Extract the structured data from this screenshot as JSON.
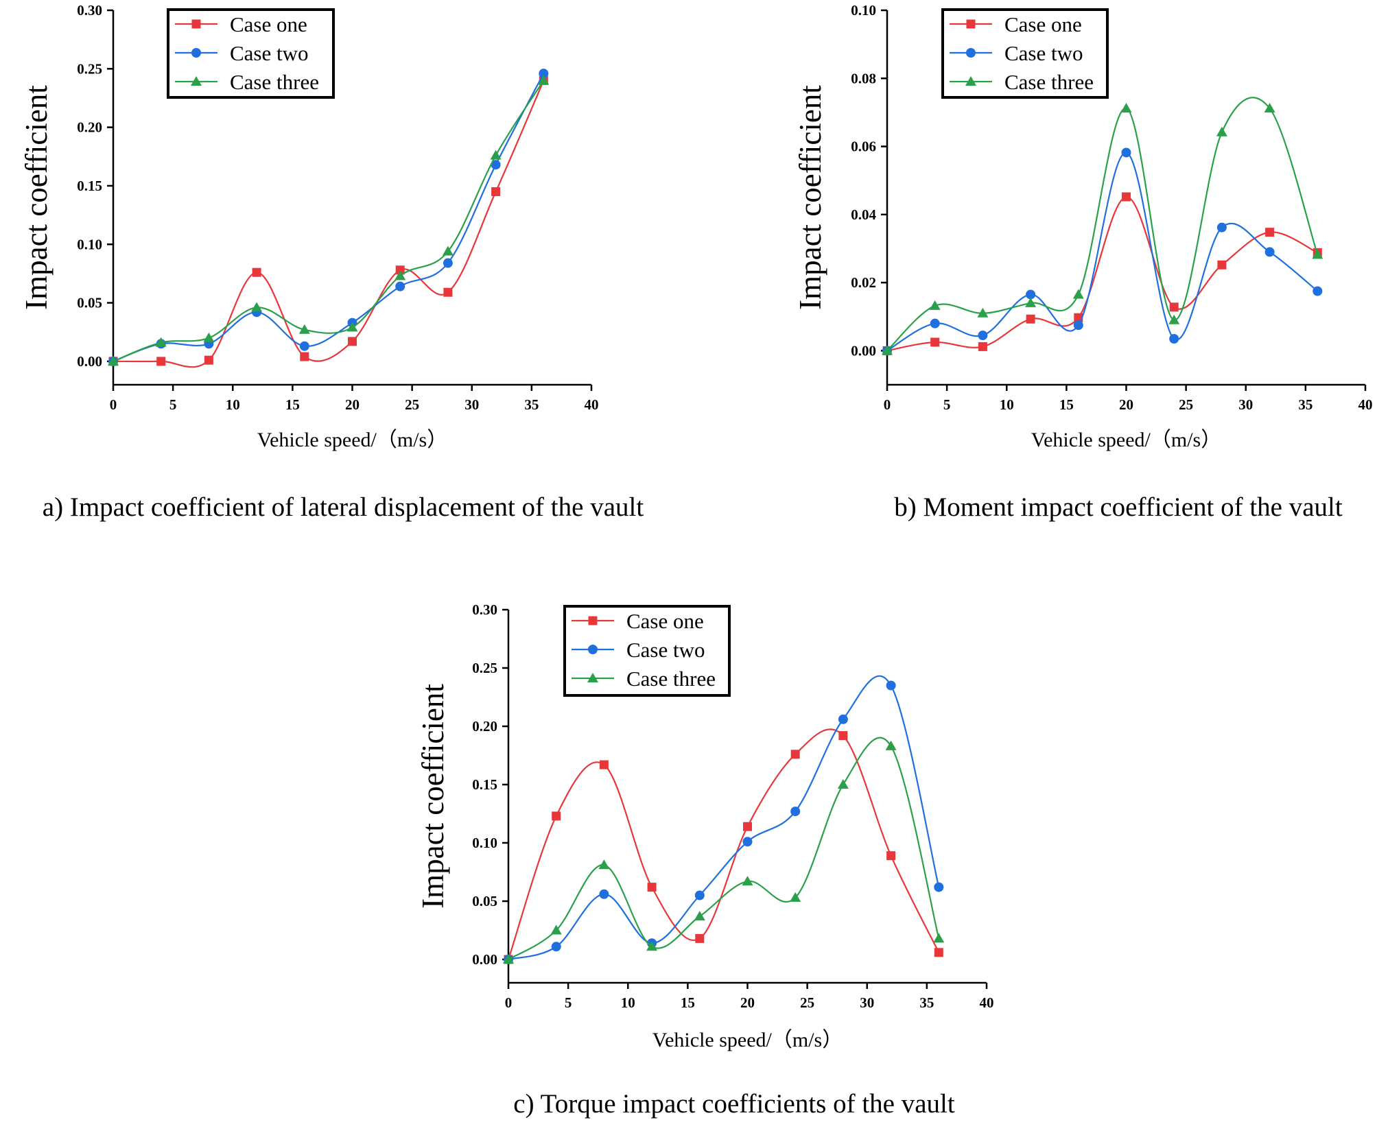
{
  "series_colors": [
    "#e8373b",
    "#1f6fdf",
    "#2aa04a"
  ],
  "chart_data": [
    {
      "type": "line",
      "caption": "a) Impact coefficient of lateral displacement of the vault",
      "xlabel": "Vehicle speed/（m/s）",
      "ylabel": "Impact coefficient",
      "xlim": [
        0,
        40
      ],
      "ylim": [
        -0.02,
        0.3
      ],
      "xticks": [
        "0",
        "5",
        "10",
        "15",
        "20",
        "25",
        "30",
        "35",
        "40"
      ],
      "yticks": [
        "0.00",
        "0.05",
        "0.10",
        "0.15",
        "0.20",
        "0.25",
        "0.30"
      ],
      "x": [
        0,
        4,
        8,
        12,
        16,
        20,
        24,
        28,
        32,
        36
      ],
      "series": [
        {
          "name": "Case one",
          "marker": "square",
          "values": [
            0.0,
            0.0,
            0.001,
            0.076,
            0.004,
            0.017,
            0.078,
            0.059,
            0.145,
            0.24
          ]
        },
        {
          "name": "Case two",
          "marker": "circle",
          "values": [
            0.0,
            0.015,
            0.015,
            0.042,
            0.013,
            0.033,
            0.064,
            0.084,
            0.168,
            0.246
          ]
        },
        {
          "name": "Case three",
          "marker": "triangle",
          "values": [
            0.0,
            0.016,
            0.02,
            0.046,
            0.027,
            0.029,
            0.073,
            0.094,
            0.176,
            0.24
          ]
        }
      ]
    },
    {
      "type": "line",
      "caption": "b) Moment impact coefficient of the vault",
      "xlabel": "Vehicle speed/（m/s）",
      "ylabel": "Impact coefficient",
      "xlim": [
        0,
        40
      ],
      "ylim": [
        -0.01,
        0.1
      ],
      "xticks": [
        "0",
        "5",
        "10",
        "15",
        "20",
        "25",
        "30",
        "35",
        "40"
      ],
      "yticks": [
        "0.00",
        "0.02",
        "0.04",
        "0.06",
        "0.08",
        "0.10"
      ],
      "x": [
        0,
        4,
        8,
        12,
        16,
        20,
        24,
        28,
        32,
        36
      ],
      "series": [
        {
          "name": "Case one",
          "marker": "square",
          "values": [
            0.0,
            0.0025,
            0.0012,
            0.0093,
            0.0097,
            0.0452,
            0.0128,
            0.0252,
            0.0348,
            0.0288
          ]
        },
        {
          "name": "Case two",
          "marker": "circle",
          "values": [
            0.0,
            0.008,
            0.0045,
            0.0165,
            0.0075,
            0.0582,
            0.0035,
            0.0362,
            0.029,
            0.0175
          ]
        },
        {
          "name": "Case three",
          "marker": "triangle",
          "values": [
            0.0,
            0.0132,
            0.011,
            0.014,
            0.0165,
            0.0712,
            0.009,
            0.0642,
            0.0712,
            0.0282
          ]
        }
      ]
    },
    {
      "type": "line",
      "caption": "c) Torque impact coefficients of the vault",
      "xlabel": "Vehicle speed/（m/s）",
      "ylabel": "Impact coefficient",
      "xlim": [
        0,
        40
      ],
      "ylim": [
        -0.02,
        0.3
      ],
      "xticks": [
        "0",
        "5",
        "10",
        "15",
        "20",
        "25",
        "30",
        "35",
        "40"
      ],
      "yticks": [
        "0.00",
        "0.05",
        "0.10",
        "0.15",
        "0.20",
        "0.25",
        "0.30"
      ],
      "x": [
        0,
        4,
        8,
        12,
        16,
        20,
        24,
        28,
        32,
        36
      ],
      "series": [
        {
          "name": "Case one",
          "marker": "square",
          "values": [
            0.0,
            0.123,
            0.167,
            0.062,
            0.018,
            0.114,
            0.176,
            0.192,
            0.089,
            0.006
          ]
        },
        {
          "name": "Case two",
          "marker": "circle",
          "values": [
            0.0,
            0.011,
            0.056,
            0.014,
            0.055,
            0.101,
            0.127,
            0.206,
            0.235,
            0.062
          ]
        },
        {
          "name": "Case three",
          "marker": "triangle",
          "values": [
            0.0,
            0.025,
            0.081,
            0.011,
            0.037,
            0.067,
            0.053,
            0.15,
            0.183,
            0.018
          ]
        }
      ]
    }
  ]
}
